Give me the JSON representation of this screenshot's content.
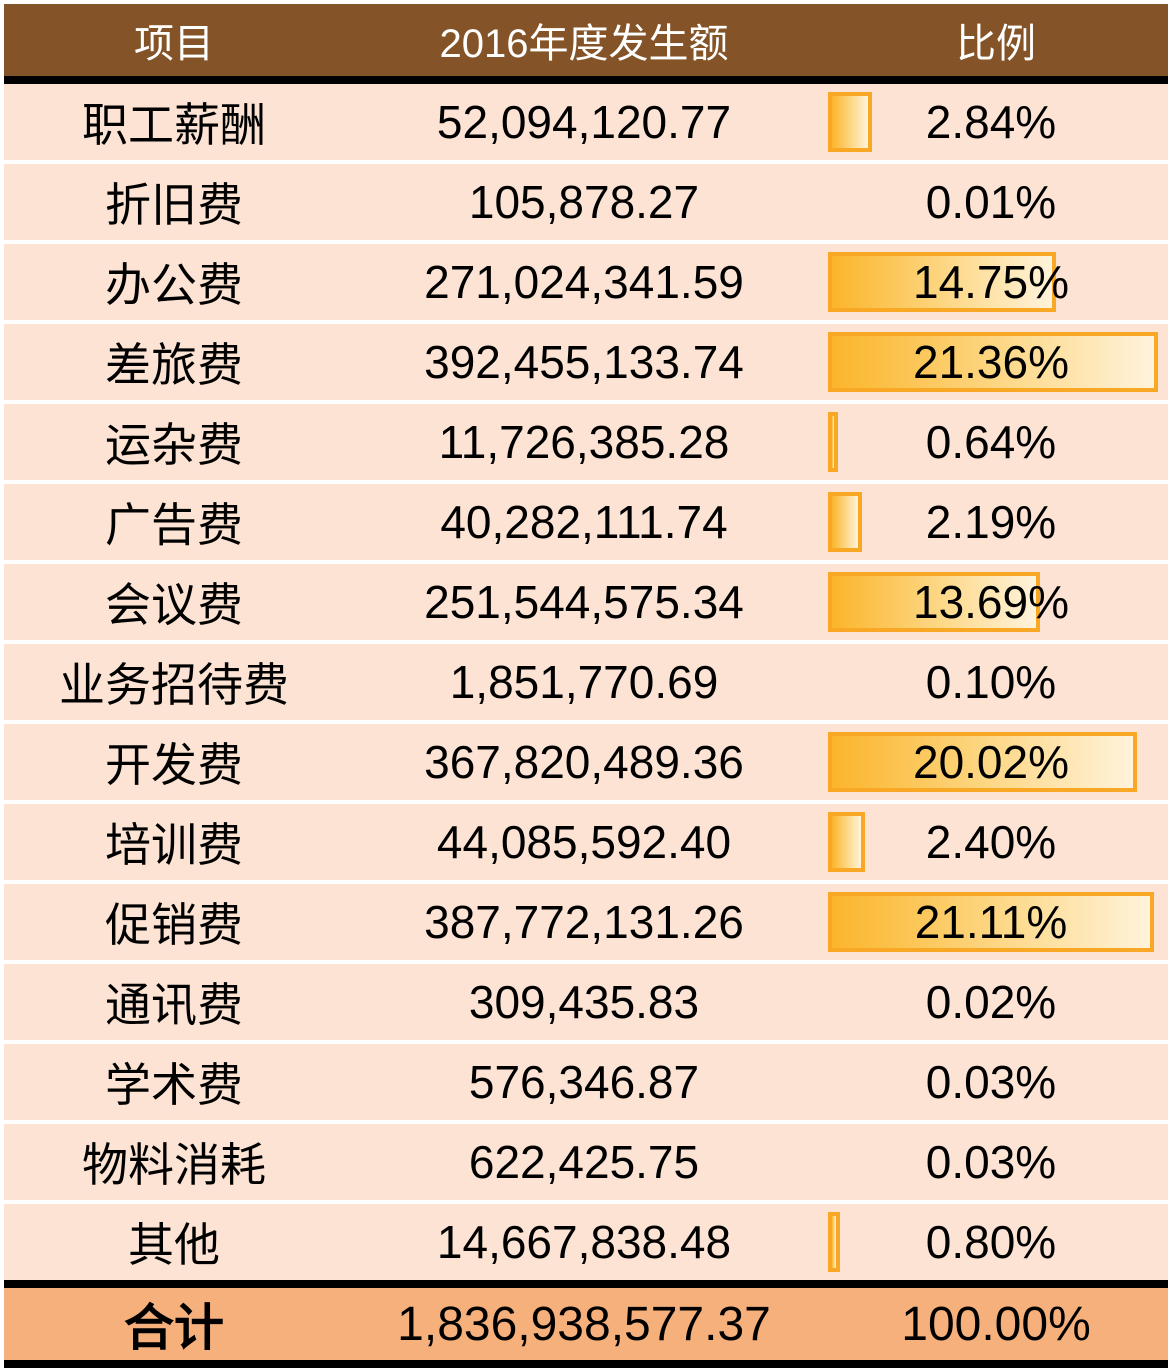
{
  "header": {
    "item": "项目",
    "amount": "2016年度发生额",
    "ratio": "比例"
  },
  "rows": [
    {
      "item": "职工薪酬",
      "amount": "52,094,120.77",
      "ratio": "2.84%",
      "pct": 2.84
    },
    {
      "item": "折旧费",
      "amount": "105,878.27",
      "ratio": "0.01%",
      "pct": 0.01
    },
    {
      "item": "办公费",
      "amount": "271,024,341.59",
      "ratio": "14.75%",
      "pct": 14.75
    },
    {
      "item": "差旅费",
      "amount": "392,455,133.74",
      "ratio": "21.36%",
      "pct": 21.36
    },
    {
      "item": "运杂费",
      "amount": "11,726,385.28",
      "ratio": "0.64%",
      "pct": 0.64
    },
    {
      "item": "广告费",
      "amount": "40,282,111.74",
      "ratio": "2.19%",
      "pct": 2.19
    },
    {
      "item": "会议费",
      "amount": "251,544,575.34",
      "ratio": "13.69%",
      "pct": 13.69
    },
    {
      "item": "业务招待费",
      "amount": "1,851,770.69",
      "ratio": "0.10%",
      "pct": 0.1
    },
    {
      "item": "开发费",
      "amount": "367,820,489.36",
      "ratio": "20.02%",
      "pct": 20.02
    },
    {
      "item": "培训费",
      "amount": "44,085,592.40",
      "ratio": "2.40%",
      "pct": 2.4
    },
    {
      "item": "促销费",
      "amount": "387,772,131.26",
      "ratio": "21.11%",
      "pct": 21.11
    },
    {
      "item": "通讯费",
      "amount": "309,435.83",
      "ratio": "0.02%",
      "pct": 0.02
    },
    {
      "item": "学术费",
      "amount": "576,346.87",
      "ratio": "0.03%",
      "pct": 0.03
    },
    {
      "item": "物料消耗",
      "amount": "622,425.75",
      "ratio": "0.03%",
      "pct": 0.03
    },
    {
      "item": "其他",
      "amount": "14,667,838.48",
      "ratio": "0.80%",
      "pct": 0.8
    }
  ],
  "total": {
    "item": "合计",
    "amount": "1,836,938,577.37",
    "ratio": "100.00%"
  },
  "colors": {
    "header_bg": "#845428",
    "row_bg": "#fce3d4",
    "total_bg": "#f5b07c",
    "bar_border": "#f9a825",
    "bar_fill": "#fbb52b"
  }
}
